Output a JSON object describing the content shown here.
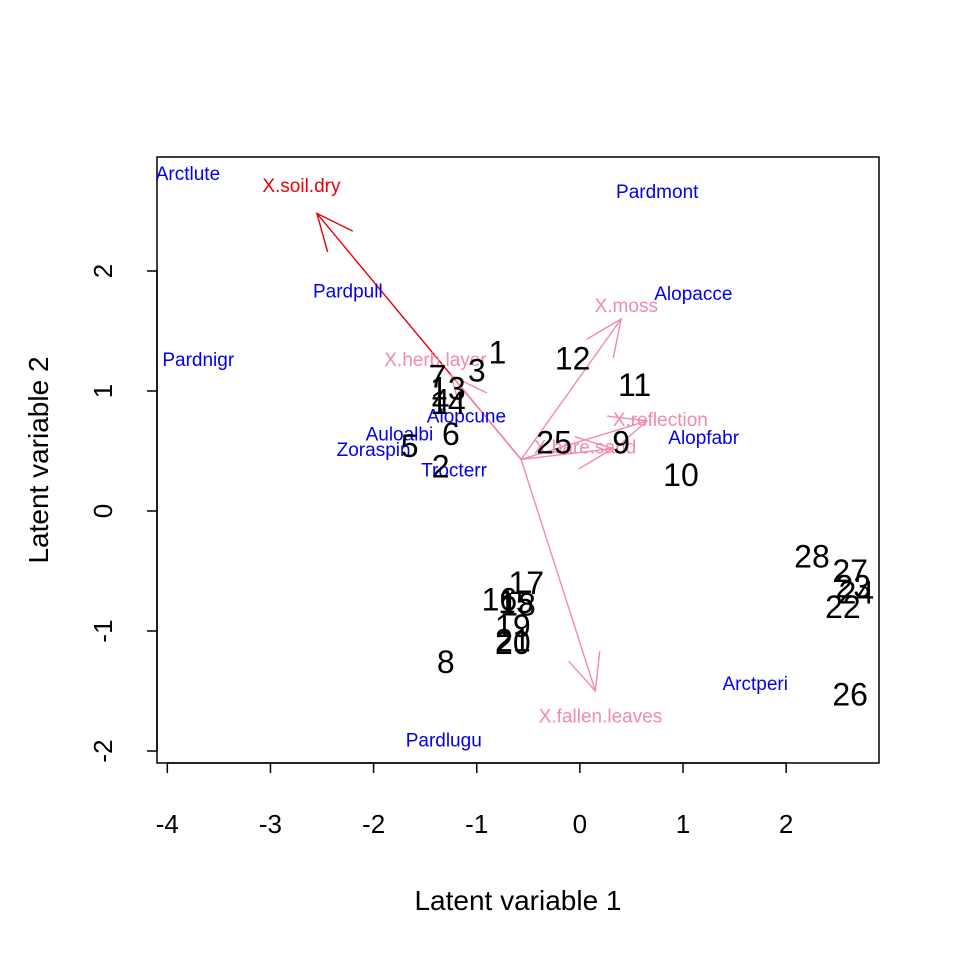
{
  "chart_data": {
    "type": "scatter",
    "subtype": "biplot",
    "xlabel": "Latent variable 1",
    "ylabel": "Latent variable 2",
    "xlim": [
      -4.1,
      2.9
    ],
    "ylim": [
      -2.1,
      2.95
    ],
    "x_ticks": [
      "-4",
      "-3",
      "-2",
      "-1",
      "0",
      "1",
      "2"
    ],
    "y_ticks": [
      "-2",
      "-1",
      "0",
      "1",
      "2"
    ],
    "grid": false,
    "site_scores": [
      {
        "label": "1",
        "x": -0.8,
        "y": 1.3
      },
      {
        "label": "2",
        "x": -1.35,
        "y": 0.35
      },
      {
        "label": "3",
        "x": -1.0,
        "y": 1.15
      },
      {
        "label": "4",
        "x": -1.35,
        "y": 0.9
      },
      {
        "label": "5",
        "x": -1.65,
        "y": 0.52
      },
      {
        "label": "6",
        "x": -1.25,
        "y": 0.62
      },
      {
        "label": "7",
        "x": -1.38,
        "y": 1.1
      },
      {
        "label": "8",
        "x": -1.3,
        "y": -1.28
      },
      {
        "label": "9",
        "x": 0.4,
        "y": 0.55
      },
      {
        "label": "10",
        "x": 0.98,
        "y": 0.28
      },
      {
        "label": "11",
        "x": 0.53,
        "y": 1.03
      },
      {
        "label": "12",
        "x": -0.07,
        "y": 1.25
      },
      {
        "label": "13",
        "x": -1.28,
        "y": 1.0
      },
      {
        "label": "14",
        "x": -1.28,
        "y": 0.88
      },
      {
        "label": "15",
        "x": -0.62,
        "y": -0.78
      },
      {
        "label": "16",
        "x": -0.78,
        "y": -0.76
      },
      {
        "label": "17",
        "x": -0.52,
        "y": -0.62
      },
      {
        "label": "18",
        "x": -0.6,
        "y": -0.8
      },
      {
        "label": "19",
        "x": -0.65,
        "y": -0.98
      },
      {
        "label": "20",
        "x": -0.65,
        "y": -1.12
      },
      {
        "label": "21",
        "x": -0.65,
        "y": -1.1
      },
      {
        "label": "22",
        "x": 2.55,
        "y": -0.82
      },
      {
        "label": "23",
        "x": 2.65,
        "y": -0.65
      },
      {
        "label": "24",
        "x": 2.68,
        "y": -0.7
      },
      {
        "label": "25",
        "x": -0.25,
        "y": 0.55
      },
      {
        "label": "26",
        "x": 2.62,
        "y": -1.55
      },
      {
        "label": "27",
        "x": 2.62,
        "y": -0.52
      },
      {
        "label": "28",
        "x": 2.25,
        "y": -0.4
      }
    ],
    "species": [
      {
        "label": "Arctlute",
        "x": -3.8,
        "y": 2.8
      },
      {
        "label": "Pardmont",
        "x": 0.75,
        "y": 2.65
      },
      {
        "label": "Alopacce",
        "x": 1.1,
        "y": 1.8
      },
      {
        "label": "Pardpull",
        "x": -2.25,
        "y": 1.82
      },
      {
        "label": "Pardnigr",
        "x": -3.7,
        "y": 1.25
      },
      {
        "label": "Alopcune",
        "x": -1.1,
        "y": 0.78
      },
      {
        "label": "Auloalbi",
        "x": -1.75,
        "y": 0.63
      },
      {
        "label": "Zoraspin",
        "x": -2.0,
        "y": 0.5
      },
      {
        "label": "Trocterr",
        "x": -1.22,
        "y": 0.33
      },
      {
        "label": "Alopfabr",
        "x": 1.2,
        "y": 0.6
      },
      {
        "label": "Arctperi",
        "x": 1.7,
        "y": -1.45
      },
      {
        "label": "Pardlugu",
        "x": -1.32,
        "y": -1.92
      }
    ],
    "arrow_origin": {
      "x": -0.57,
      "y": 0.43
    },
    "environment": [
      {
        "label": "X.soil.dry",
        "x": -2.55,
        "y": 2.48,
        "lx": -2.7,
        "ly": 2.7,
        "color": "#e8000b"
      },
      {
        "label": "X.herb.layer",
        "x": -1.25,
        "y": 1.13,
        "lx": -1.4,
        "ly": 1.25,
        "color": "#f28aab"
      },
      {
        "label": "X.moss",
        "x": 0.4,
        "y": 1.6,
        "lx": 0.45,
        "ly": 1.7,
        "color": "#f28aab"
      },
      {
        "label": "X.reflection",
        "x": 0.65,
        "y": 0.75,
        "lx": 0.78,
        "ly": 0.75,
        "color": "#f28aab"
      },
      {
        "label": "X.bare.sand",
        "x": 0.32,
        "y": 0.52,
        "lx": 0.05,
        "ly": 0.52,
        "color": "#f28aab"
      },
      {
        "label": "X.fallen.leaves",
        "x": 0.15,
        "y": -1.5,
        "lx": 0.2,
        "ly": -1.72,
        "color": "#f28aab"
      }
    ],
    "colors": {
      "sites": "#000000",
      "species": "#0000ee",
      "primary_env": "#e8000b",
      "env": "#f28aab"
    }
  }
}
